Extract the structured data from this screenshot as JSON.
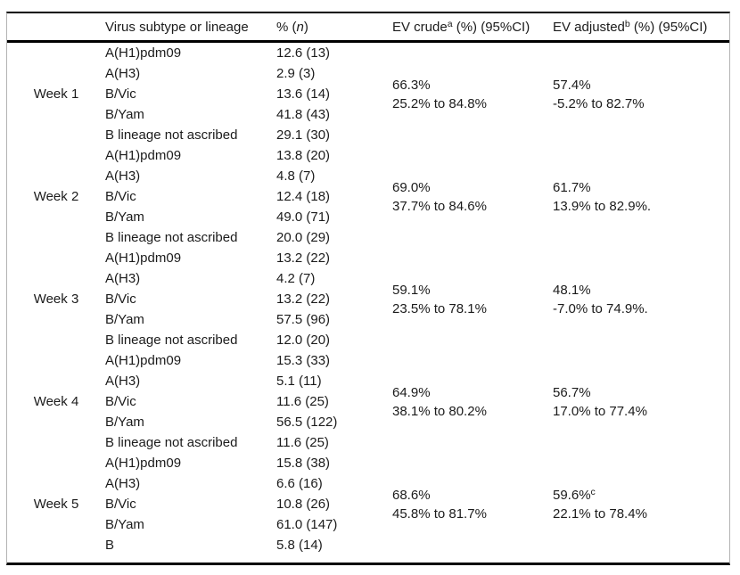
{
  "table": {
    "headers": {
      "week": "",
      "virus": "Virus subtype or lineage",
      "pct_prefix": "% (",
      "pct_n": "n",
      "pct_suffix": ")",
      "ev_crude": "EV crude",
      "ev_crude_sup": "a",
      "ev_crude_rest": " (%) (95%CI)",
      "ev_adjusted": "EV adjusted",
      "ev_adjusted_sup": "b",
      "ev_adjusted_rest": " (%) (95%CI)"
    },
    "groups": [
      {
        "week": "Week 1",
        "rows": [
          {
            "subtype": "A(H1)pdm09",
            "pct_n": "12.6 (13)"
          },
          {
            "subtype": "A(H3)",
            "pct_n": "2.9 (3)"
          },
          {
            "subtype": "B/Vic",
            "pct_n": "13.6 (14)"
          },
          {
            "subtype": "B/Yam",
            "pct_n": "41.8 (43)"
          },
          {
            "subtype": "B lineage not ascribed",
            "pct_n": "29.1 (30)"
          }
        ],
        "ev_crude": {
          "value": "66.3%",
          "ci": "25.2% to 84.8%"
        },
        "ev_adjusted": {
          "value": "57.4%",
          "sup": "",
          "ci": "-5.2% to 82.7%"
        }
      },
      {
        "week": "Week 2",
        "rows": [
          {
            "subtype": "A(H1)pdm09",
            "pct_n": "13.8 (20)"
          },
          {
            "subtype": "A(H3)",
            "pct_n": "4.8 (7)"
          },
          {
            "subtype": "B/Vic",
            "pct_n": "12.4 (18)"
          },
          {
            "subtype": "B/Yam",
            "pct_n": "49.0 (71)"
          },
          {
            "subtype": "B lineage not ascribed",
            "pct_n": "20.0 (29)"
          }
        ],
        "ev_crude": {
          "value": "69.0%",
          "ci": "37.7% to 84.6%"
        },
        "ev_adjusted": {
          "value": "61.7%",
          "sup": "",
          "ci": "13.9% to 82.9%."
        }
      },
      {
        "week": "Week 3",
        "rows": [
          {
            "subtype": "A(H1)pdm09",
            "pct_n": "13.2 (22)"
          },
          {
            "subtype": "A(H3)",
            "pct_n": "4.2 (7)"
          },
          {
            "subtype": "B/Vic",
            "pct_n": "13.2 (22)"
          },
          {
            "subtype": "B/Yam",
            "pct_n": "57.5 (96)"
          },
          {
            "subtype": "B lineage not ascribed",
            "pct_n": "12.0 (20)"
          }
        ],
        "ev_crude": {
          "value": "59.1%",
          "ci": "23.5% to 78.1%"
        },
        "ev_adjusted": {
          "value": "48.1%",
          "sup": "",
          "ci": "-7.0% to 74.9%."
        }
      },
      {
        "week": "Week 4",
        "rows": [
          {
            "subtype": "A(H1)pdm09",
            "pct_n": "15.3 (33)"
          },
          {
            "subtype": "A(H3)",
            "pct_n": "5.1 (11)"
          },
          {
            "subtype": "B/Vic",
            "pct_n": "11.6 (25)"
          },
          {
            "subtype": "B/Yam",
            "pct_n": "56.5 (122)"
          },
          {
            "subtype": "B lineage not ascribed",
            "pct_n": "11.6 (25)"
          }
        ],
        "ev_crude": {
          "value": "64.9%",
          "ci": "38.1% to 80.2%"
        },
        "ev_adjusted": {
          "value": "56.7%",
          "sup": "",
          "ci": "17.0% to 77.4%"
        }
      },
      {
        "week": "Week 5",
        "rows": [
          {
            "subtype": "A(H1)pdm09",
            "pct_n": "15.8 (38)"
          },
          {
            "subtype": "A(H3)",
            "pct_n": "6.6 (16)"
          },
          {
            "subtype": "B/Vic",
            "pct_n": "10.8 (26)"
          },
          {
            "subtype": "B/Yam",
            "pct_n": "61.0 (147)"
          },
          {
            "subtype": "B",
            "pct_n": "5.8 (14)"
          }
        ],
        "ev_crude": {
          "value": "68.6%",
          "ci": "45.8% to 81.7%"
        },
        "ev_adjusted": {
          "value": "59.6%",
          "sup": "c",
          "ci": "22.1% to 78.4%"
        }
      }
    ]
  }
}
